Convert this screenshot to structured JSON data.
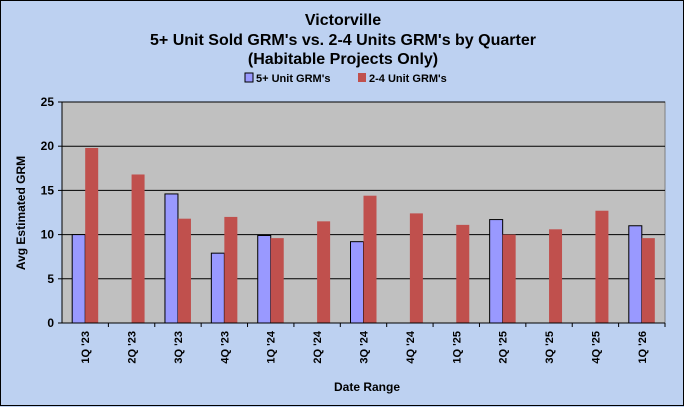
{
  "chart_data": {
    "type": "bar",
    "title_lines": [
      "Victorville",
      "5+ Unit Sold GRM's vs. 2-4 Units GRM's by Quarter",
      "(Habitable Projects Only)"
    ],
    "xlabel": "Date Range",
    "ylabel": "Avg  Estimated  GRM",
    "ylim": [
      0,
      25
    ],
    "yticks": [
      0,
      5,
      10,
      15,
      20,
      25
    ],
    "grid": true,
    "legend_position": "top-center",
    "categories": [
      "1Q '23",
      "2Q '23",
      "3Q '23",
      "4Q '23",
      "1Q '24",
      "2Q '24",
      "3Q '24",
      "4Q '24",
      "1Q '25",
      "2Q '25",
      "3Q '25",
      "4Q '25",
      "1Q '26"
    ],
    "series": [
      {
        "name": "5+ Unit GRM's",
        "color": "#9999ff",
        "values": [
          10.0,
          null,
          14.6,
          7.9,
          9.9,
          null,
          9.2,
          null,
          null,
          11.7,
          null,
          null,
          11.0
        ]
      },
      {
        "name": "2-4 Unit GRM's",
        "color": "#c0504d",
        "values": [
          19.8,
          16.8,
          11.8,
          12.0,
          9.6,
          11.5,
          14.4,
          12.4,
          11.1,
          10.0,
          10.6,
          12.7,
          9.6
        ]
      }
    ]
  }
}
